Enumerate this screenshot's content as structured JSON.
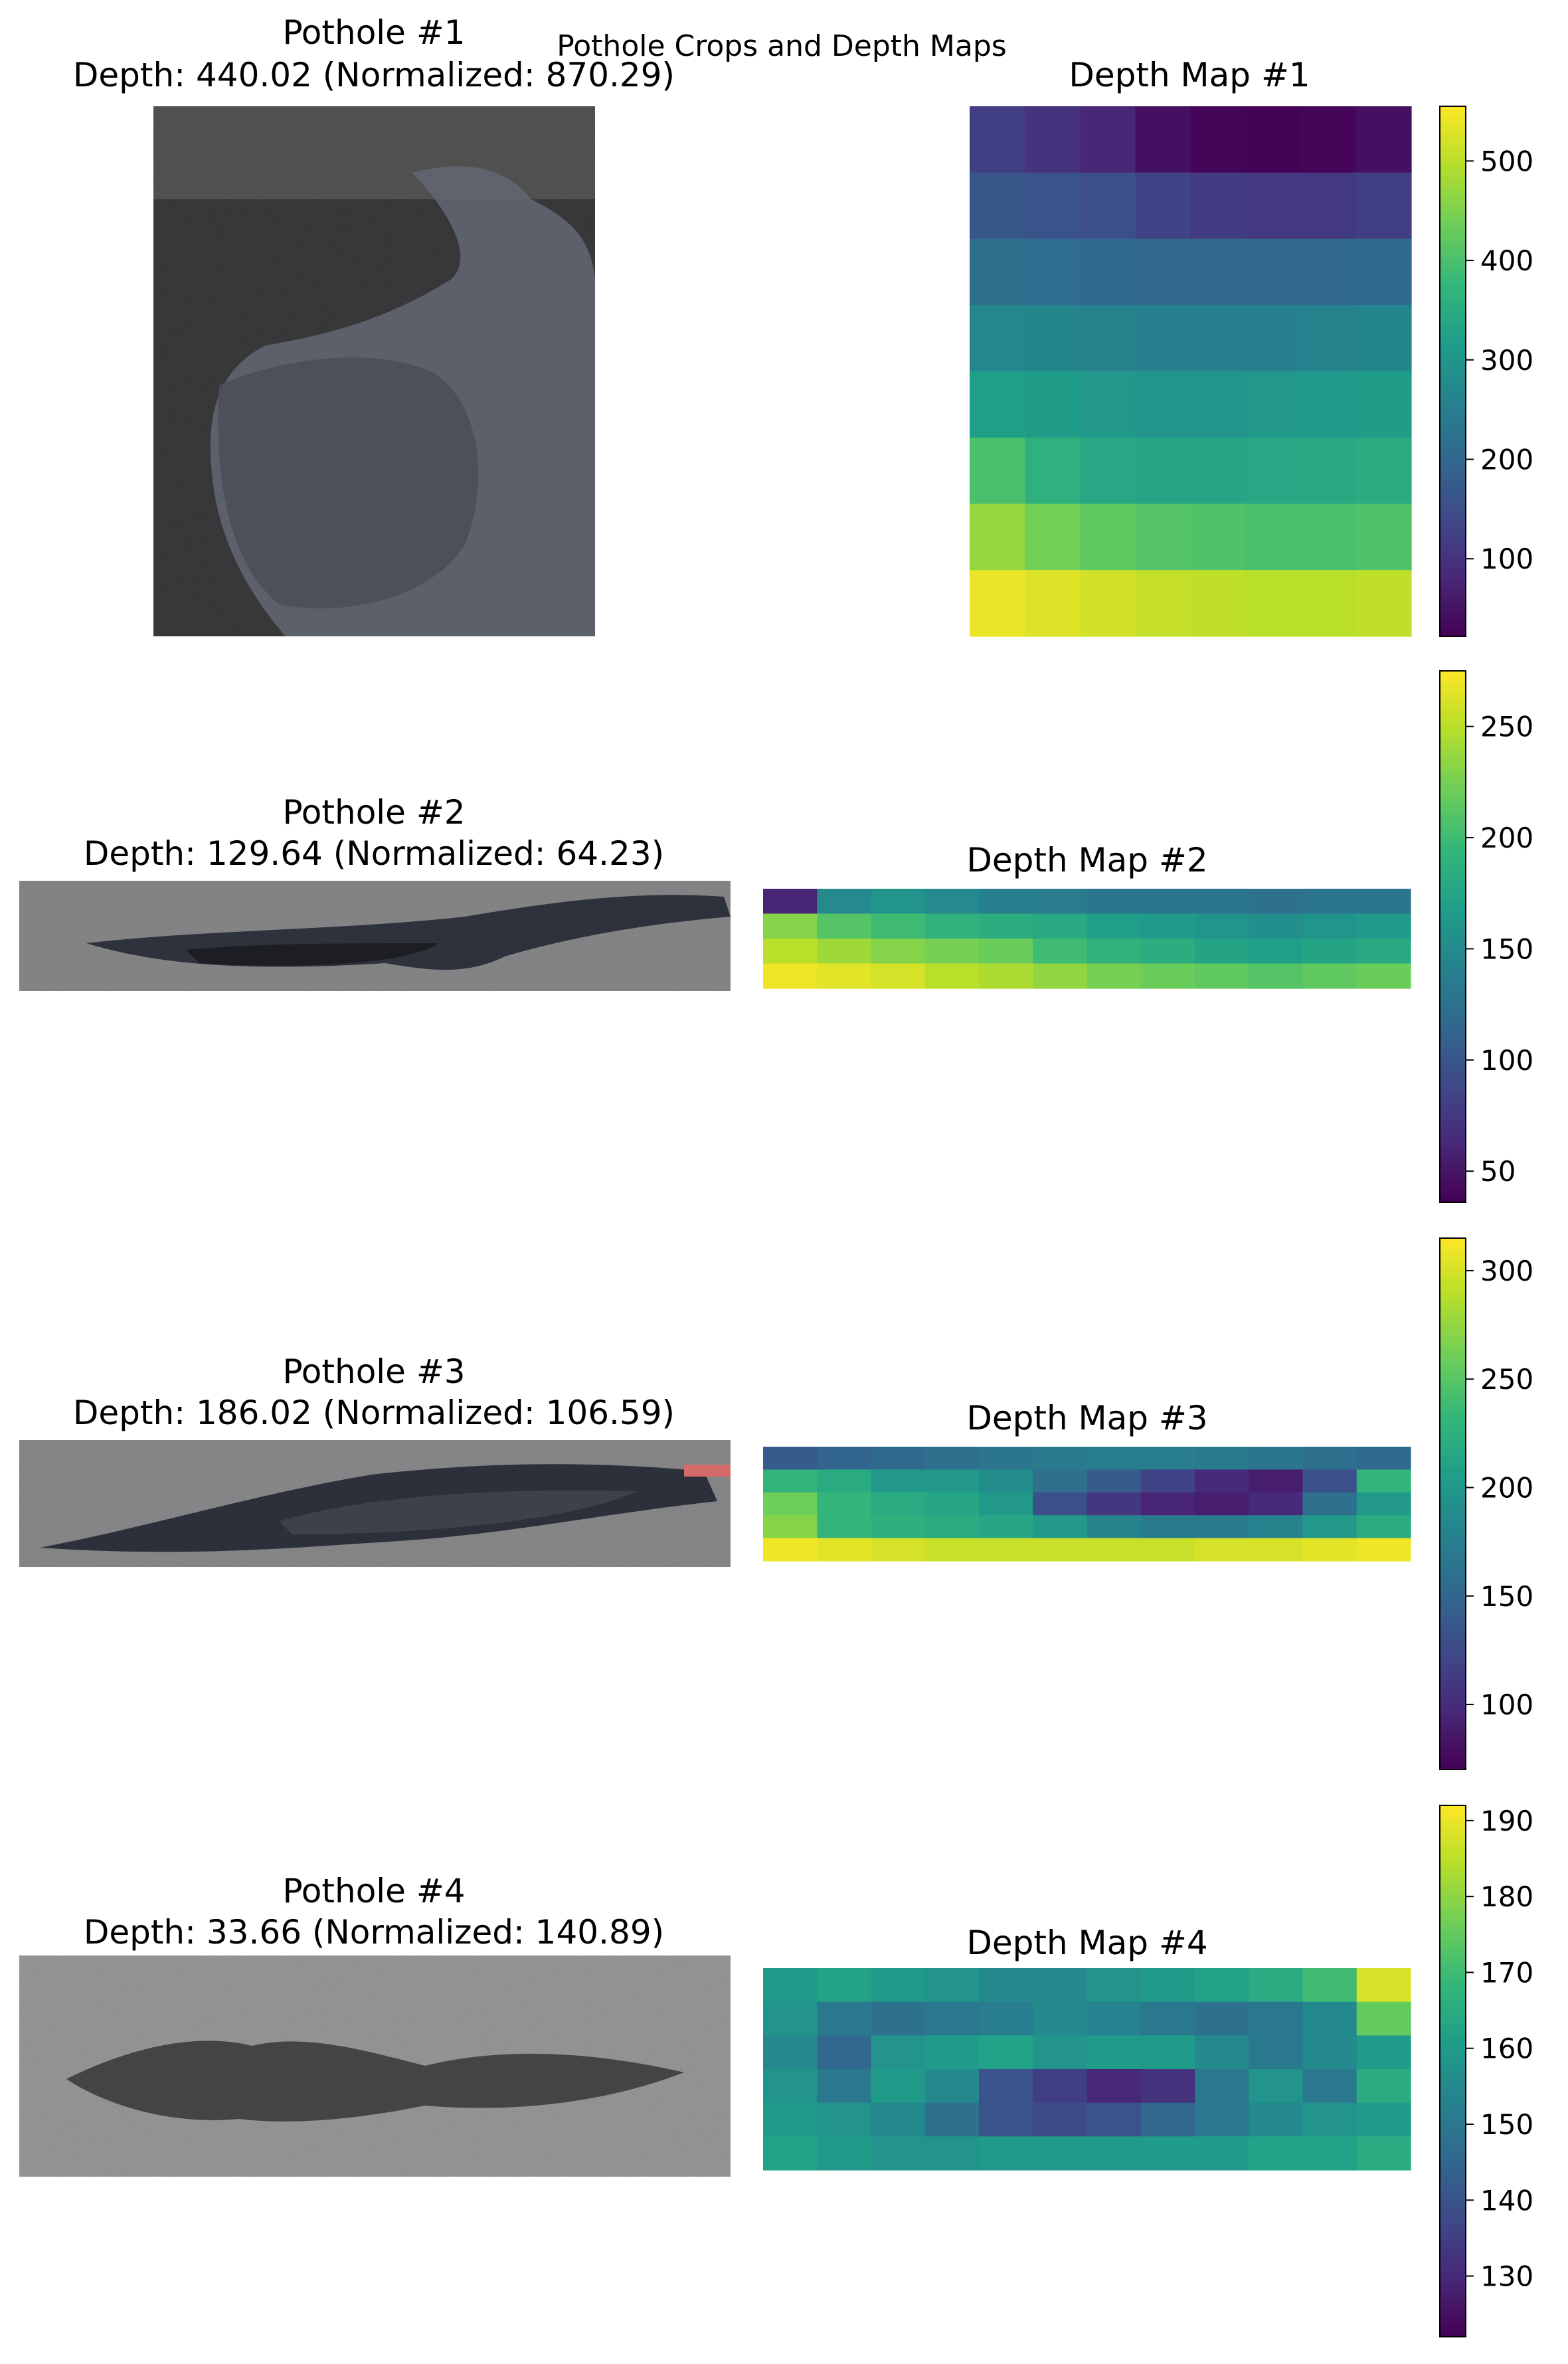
{
  "figure": {
    "suptitle": "Pothole Crops and Depth Maps"
  },
  "colormap": {
    "name": "viridis",
    "stops": [
      "#440154",
      "#482878",
      "#3e4a89",
      "#31688e",
      "#26828e",
      "#1f9e89",
      "#35b779",
      "#6ece58",
      "#b5de2b",
      "#fde725"
    ]
  },
  "chart_data": [
    {
      "type": "heatmap",
      "id": 1,
      "crop_title": "Pothole #1",
      "crop_subtitle": "Depth: 440.02 (Normalized: 870.29)",
      "map_title": "Depth Map #1",
      "colorbar": {
        "range": [
          22,
          555
        ],
        "ticks": [
          100,
          200,
          300,
          400,
          500
        ]
      },
      "grid": [
        [
          120,
          100,
          80,
          45,
          30,
          25,
          30,
          45
        ],
        [
          165,
          160,
          150,
          130,
          115,
          110,
          110,
          120
        ],
        [
          215,
          210,
          205,
          200,
          200,
          200,
          200,
          205
        ],
        [
          270,
          265,
          260,
          255,
          255,
          255,
          260,
          265
        ],
        [
          320,
          315,
          305,
          300,
          300,
          305,
          310,
          315
        ],
        [
          400,
          360,
          340,
          335,
          335,
          340,
          345,
          350
        ],
        [
          470,
          440,
          420,
          410,
          405,
          400,
          400,
          405
        ],
        [
          540,
          530,
          520,
          510,
          505,
          500,
          500,
          505
        ]
      ]
    },
    {
      "type": "heatmap",
      "id": 2,
      "crop_title": "Pothole #2",
      "crop_subtitle": "Depth: 129.64 (Normalized: 64.23)",
      "map_title": "Depth Map #2",
      "colorbar": {
        "range": [
          36,
          275
        ],
        "ticks": [
          50,
          100,
          150,
          200,
          250
        ]
      },
      "grid": [
        [
          60,
          150,
          160,
          150,
          140,
          135,
          130,
          130,
          130,
          125,
          130,
          130
        ],
        [
          230,
          210,
          200,
          190,
          185,
          180,
          170,
          165,
          160,
          155,
          160,
          165
        ],
        [
          250,
          240,
          230,
          225,
          220,
          200,
          190,
          185,
          175,
          170,
          175,
          180
        ],
        [
          270,
          265,
          260,
          250,
          245,
          235,
          225,
          220,
          215,
          210,
          215,
          220
        ]
      ]
    },
    {
      "type": "heatmap",
      "id": 3,
      "crop_title": "Pothole #3",
      "crop_subtitle": "Depth: 186.02 (Normalized: 106.59)",
      "map_title": "Depth Map #3",
      "colorbar": {
        "range": [
          70,
          315
        ],
        "ticks": [
          100,
          150,
          200,
          250,
          300
        ]
      },
      "grid": [
        [
          140,
          150,
          155,
          160,
          165,
          170,
          175,
          175,
          170,
          165,
          160,
          155
        ],
        [
          230,
          220,
          200,
          200,
          190,
          160,
          140,
          120,
          100,
          90,
          130,
          230
        ],
        [
          260,
          230,
          220,
          215,
          200,
          130,
          110,
          95,
          90,
          100,
          160,
          200
        ],
        [
          270,
          230,
          225,
          220,
          215,
          200,
          180,
          170,
          170,
          180,
          200,
          220
        ],
        [
          310,
          305,
          300,
          295,
          295,
          295,
          295,
          295,
          300,
          300,
          305,
          310
        ]
      ]
    },
    {
      "type": "heatmap",
      "id": 4,
      "crop_title": "Pothole #4",
      "crop_subtitle": "Depth: 33.66 (Normalized: 140.89)",
      "map_title": "Depth Map #4",
      "colorbar": {
        "range": [
          122,
          192
        ],
        "ticks": [
          130,
          140,
          150,
          160,
          170,
          180,
          190
        ]
      },
      "grid": [
        [
          160,
          162,
          160,
          158,
          155,
          155,
          158,
          160,
          162,
          165,
          170,
          188
        ],
        [
          158,
          150,
          148,
          150,
          152,
          155,
          153,
          150,
          148,
          150,
          155,
          175
        ],
        [
          155,
          145,
          158,
          160,
          162,
          158,
          160,
          160,
          155,
          150,
          155,
          160
        ],
        [
          158,
          150,
          160,
          155,
          140,
          135,
          130,
          132,
          150,
          158,
          150,
          165
        ],
        [
          160,
          158,
          155,
          148,
          140,
          138,
          140,
          145,
          150,
          155,
          158,
          160
        ],
        [
          162,
          160,
          158,
          158,
          160,
          160,
          160,
          160,
          160,
          162,
          162,
          165
        ]
      ]
    }
  ]
}
